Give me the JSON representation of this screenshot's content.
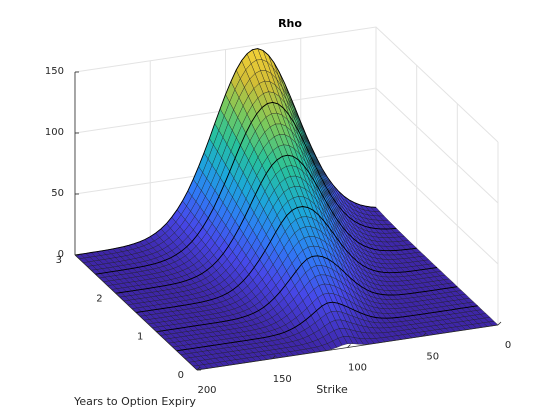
{
  "chart_data": {
    "type": "surface3d",
    "title": "Rho",
    "xlabel": "Strike",
    "ylabel": "Years to Option Expiry",
    "zlabel": "",
    "strike_range": [
      0,
      200
    ],
    "expiry_range": [
      0,
      3
    ],
    "zlim": [
      0,
      150
    ],
    "strike_ticks": [
      {
        "value": 0,
        "label": "0"
      },
      {
        "value": 50,
        "label": "50"
      },
      {
        "value": 100,
        "label": "100"
      },
      {
        "value": 150,
        "label": "150"
      },
      {
        "value": 200,
        "label": "200"
      }
    ],
    "expiry_ticks": [
      {
        "value": 0,
        "label": "0"
      },
      {
        "value": 1,
        "label": "1"
      },
      {
        "value": 2,
        "label": "2"
      },
      {
        "value": 3,
        "label": "3"
      }
    ],
    "z_ticks": [
      {
        "value": 0,
        "label": "0"
      },
      {
        "value": 50,
        "label": "50"
      },
      {
        "value": 100,
        "label": "100"
      },
      {
        "value": 150,
        "label": "150"
      }
    ],
    "expiry_lines": [
      0.5,
      1.0,
      1.5,
      2.0,
      2.5,
      3.0
    ],
    "peak": {
      "strike": 80,
      "expiry": 3,
      "rho": 147
    },
    "grid": true,
    "colormap": [
      "#3e26a8",
      "#4748e9",
      "#2f7cf6",
      "#1ca8d9",
      "#28c29b",
      "#7bc95c",
      "#d2bd35",
      "#f9d638"
    ]
  }
}
